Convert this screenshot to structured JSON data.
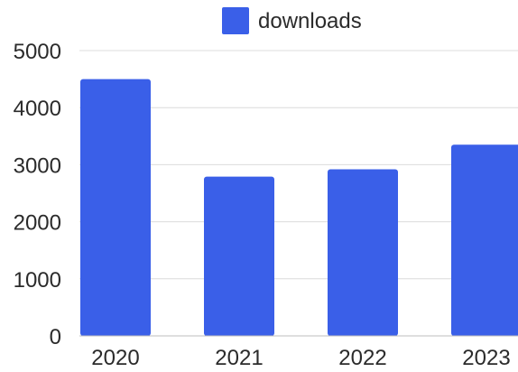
{
  "chart_data": {
    "type": "bar",
    "categories": [
      "2020",
      "2021",
      "2022",
      "2023"
    ],
    "series": [
      {
        "name": "downloads",
        "values": [
          4500,
          2790,
          2920,
          3350
        ],
        "color": "#3a5fe8"
      }
    ],
    "ylim": [
      0,
      5000
    ],
    "yticks": [
      0,
      1000,
      2000,
      3000,
      4000,
      5000
    ],
    "grid": true,
    "legend_placement": "top"
  }
}
